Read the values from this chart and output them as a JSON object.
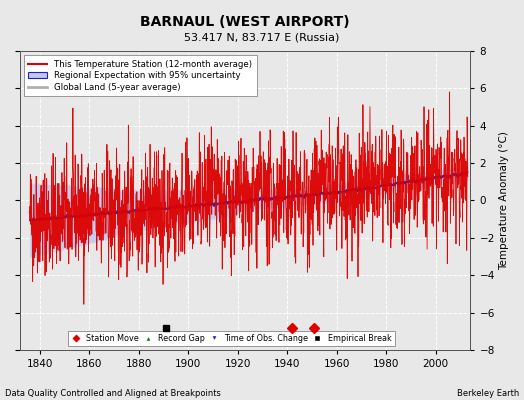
{
  "title": "BARNAUL (WEST AIRPORT)",
  "subtitle": "53.417 N, 83.717 E (Russia)",
  "ylabel": "Temperature Anomaly (°C)",
  "footer_left": "Data Quality Controlled and Aligned at Breakpoints",
  "footer_right": "Berkeley Earth",
  "xlim": [
    1832,
    2014
  ],
  "ylim": [
    -8,
    8
  ],
  "yticks": [
    -8,
    -6,
    -4,
    -2,
    0,
    2,
    4,
    6,
    8
  ],
  "xticks": [
    1840,
    1860,
    1880,
    1900,
    1920,
    1940,
    1960,
    1980,
    2000
  ],
  "background_color": "#e8e8e8",
  "plot_bg_color": "#e8e8e8",
  "grid_color": "#ffffff",
  "station_line_color": "#dd0000",
  "regional_line_color": "#2222bb",
  "regional_fill_color": "#c0c8ee",
  "global_line_color": "#b0b0b0",
  "empirical_break_years": [
    1891
  ],
  "station_move_years": [
    1942,
    1951
  ],
  "time_obs_change_years": [],
  "record_gap_years": [],
  "seed": 42
}
